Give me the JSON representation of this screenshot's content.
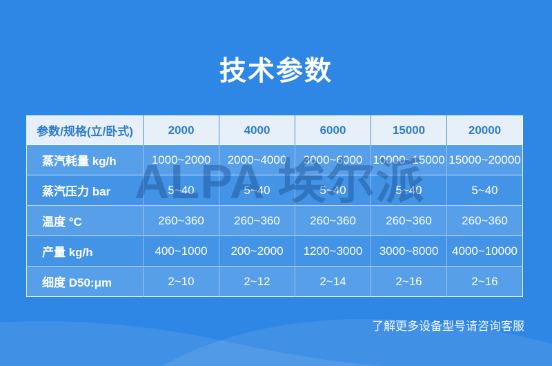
{
  "page": {
    "title": "技术参数",
    "watermark": "ALPA 埃尔派",
    "footer_note": "了解更多设备型号请咨询客服",
    "colors": {
      "background": "#2E87E4",
      "header_bg": "#E7F0F9",
      "header_text": "#2F7CC9",
      "header_divider": "#4E8CCB",
      "table_border": "rgba(255,255,255,0.85)",
      "row_stripe_light": "rgba(255,255,255,0.20)",
      "row_stripe_dark": "rgba(255,255,255,0.10)",
      "cell_text": "#FFFFFF",
      "watermark": "rgba(23,73,134,0.40)",
      "wave": "rgba(255,255,255,0.085)"
    }
  },
  "table": {
    "columns": [
      "参数/规格(立/卧式)",
      "2000",
      "4000",
      "6000",
      "15000",
      "20000"
    ],
    "rows": [
      {
        "label": "蒸汽耗量 kg/h",
        "values": [
          "1000~2000",
          "2000~4000",
          "3000~6000",
          "10000~15000",
          "15000~20000"
        ]
      },
      {
        "label": "蒸汽压力 bar",
        "values": [
          "5~40",
          "5~40",
          "5~40",
          "5~40",
          "5~40"
        ]
      },
      {
        "label": "温度 °C",
        "values": [
          "260~360",
          "260~360",
          "260~360",
          "260~360",
          "260~360"
        ]
      },
      {
        "label": "产量 kg/h",
        "values": [
          "400~1000",
          "200~2000",
          "1200~3000",
          "3000~8000",
          "4000~10000"
        ]
      },
      {
        "label": "细度 D50:μm",
        "values": [
          "2~10",
          "2~12",
          "2~14",
          "2~16",
          "2~16"
        ]
      }
    ]
  }
}
